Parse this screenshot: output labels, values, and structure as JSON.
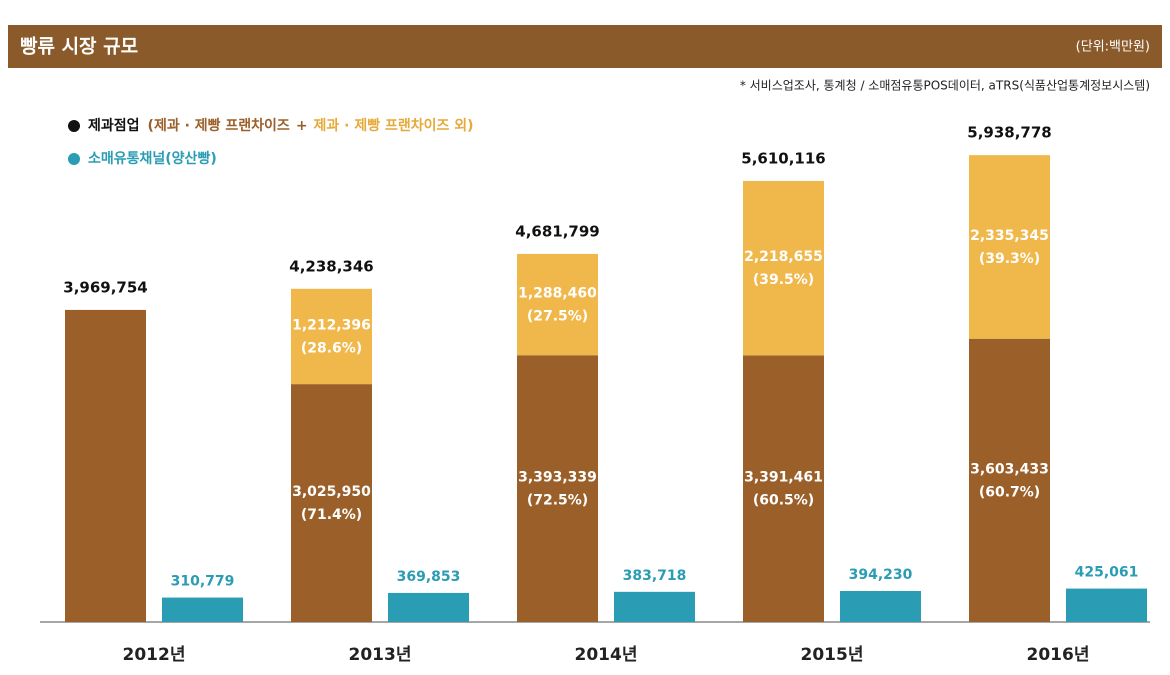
{
  "chart_data": {
    "type": "bar",
    "title": "빵류 시장 규모",
    "unit": "(단위:백만원)",
    "source": "* 서비스업조사, 통계청 / 소매점유통POS데이터, aTRS(식품산업통계정보시스템)",
    "legend_group": {
      "label": "제과점업",
      "open": "(",
      "plus": "+",
      "close": ")"
    },
    "categories": [
      "2012년",
      "2013년",
      "2014년",
      "2015년",
      "2016년"
    ],
    "series": [
      {
        "name": "제과 · 제빵 프랜차이즈",
        "color": "#9b5f2a",
        "stack": "a",
        "values": [
          3969754,
          3025950,
          3393339,
          3391461,
          3603433
        ],
        "value_labels": [
          null,
          "3,025,950",
          "3,393,339",
          "3,391,461",
          "3,603,433"
        ],
        "share_labels": [
          null,
          "(71.4%)",
          "(72.5%)",
          "(60.5%)",
          "(60.7%)"
        ]
      },
      {
        "name": "제과 · 제빵 프랜차이즈 외",
        "color": "#f0b74a",
        "stack": "a",
        "values": [
          null,
          1212396,
          1288460,
          2218655,
          2335345
        ],
        "value_labels": [
          null,
          "1,212,396",
          "1,288,460",
          "2,218,655",
          "2,335,345"
        ],
        "share_labels": [
          null,
          "(28.6%)",
          "(27.5%)",
          "(39.5%)",
          "(39.3%)"
        ]
      },
      {
        "name": "소매유통채널(양산빵)",
        "color": "#2a9cb3",
        "stack": "b",
        "values": [
          310779,
          369853,
          383718,
          394230,
          425061
        ],
        "value_labels": [
          "310,779",
          "369,853",
          "383,718",
          "394,230",
          "425,061"
        ]
      }
    ],
    "totals": {
      "values": [
        3969754,
        4238346,
        4681799,
        5610116,
        5938778
      ],
      "value_labels": [
        "3,969,754",
        "4,238,346",
        "4,681,799",
        "5,610,116",
        "5,938,778"
      ]
    },
    "ylim": [
      0,
      6640000
    ]
  }
}
